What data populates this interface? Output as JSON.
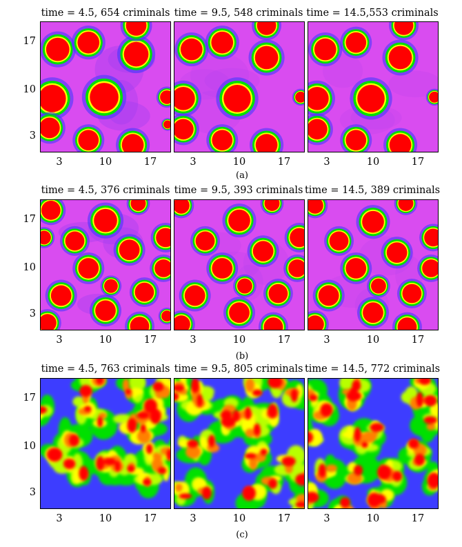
{
  "rows": [
    {
      "label": "(a)",
      "pattern": "spots",
      "panels": [
        {
          "title": "time = 4.5, 654 criminals"
        },
        {
          "title": "time = 9.5, 548 criminals"
        },
        {
          "title": "time = 14.5,553 criminals"
        }
      ]
    },
    {
      "label": "(b)",
      "pattern": "spots",
      "panels": [
        {
          "title": "time = 4.5, 376 criminals"
        },
        {
          "title": "time = 9.5, 393 criminals"
        },
        {
          "title": "time = 14.5, 389 criminals"
        }
      ]
    },
    {
      "label": "(c)",
      "pattern": "turbulent",
      "panels": [
        {
          "title": "time = 4.5, 763 criminals"
        },
        {
          "title": "time = 9.5, 805 criminals"
        },
        {
          "title": "time = 14.5, 772 criminals"
        }
      ]
    }
  ],
  "y_ticks": [
    "17",
    "10",
    "3"
  ],
  "x_ticks": [
    "3",
    "10",
    "17"
  ],
  "colors": {
    "background_spots": "#d94cf0",
    "hotspot": "#ff0000",
    "ring_yellow": "#ffff00",
    "ring_green": "#00e000",
    "ring_blue": "#3838ff"
  }
}
